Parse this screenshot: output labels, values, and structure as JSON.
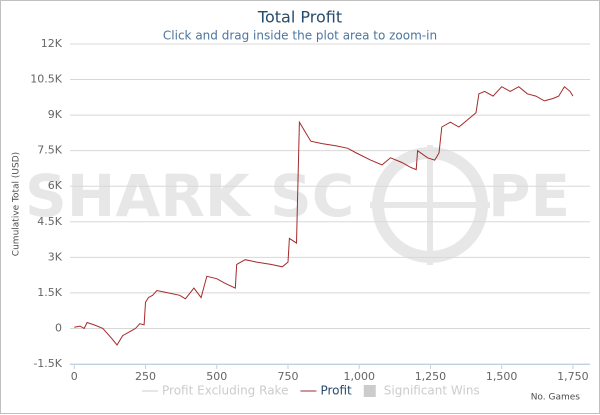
{
  "chart_data": {
    "type": "line",
    "title": "Total Profit",
    "subtitle": "Click and drag inside the plot area to zoom-in",
    "y_axis_label": "Cumulative Total (USD)",
    "x_axis_label": "No. Games",
    "watermark": [
      "SHARK SC",
      "PE"
    ],
    "xlim": [
      -15,
      1810
    ],
    "ylim": [
      -1500,
      12000
    ],
    "xticks": [
      0,
      250,
      500,
      750,
      {
        "value": 1000,
        "label": "1,000"
      },
      {
        "value": 1250,
        "label": "1,250"
      },
      {
        "value": 1500,
        "label": "1,500"
      },
      {
        "value": 1750,
        "label": "1,750"
      }
    ],
    "yticks": [
      {
        "value": -1500,
        "label": "-1.5K"
      },
      0,
      {
        "value": 1500,
        "label": "1.5K"
      },
      {
        "value": 3000,
        "label": "3K"
      },
      {
        "value": 4500,
        "label": "4.5K"
      },
      {
        "value": 6000,
        "label": "6K"
      },
      {
        "value": 7500,
        "label": "7.5K"
      },
      {
        "value": 9000,
        "label": "9K"
      },
      {
        "value": 10500,
        "label": "10.5K"
      },
      {
        "value": 12000,
        "label": "12K"
      }
    ],
    "grid": true,
    "x": [
      0,
      20,
      35,
      45,
      70,
      100,
      130,
      150,
      170,
      200,
      215,
      230,
      245,
      250,
      260,
      275,
      290,
      330,
      370,
      390,
      420,
      445,
      465,
      500,
      530,
      565,
      570,
      600,
      640,
      690,
      730,
      750,
      755,
      780,
      790,
      810,
      830,
      870,
      920,
      960,
      990,
      1040,
      1080,
      1110,
      1150,
      1180,
      1200,
      1205,
      1240,
      1265,
      1280,
      1290,
      1320,
      1350,
      1380,
      1410,
      1420,
      1440,
      1470,
      1500,
      1530,
      1560,
      1590,
      1620,
      1650,
      1680,
      1700,
      1720,
      1740,
      1750
    ],
    "series": [
      {
        "color": "#a52a2a",
        "values": [
          50,
          100,
          0,
          250,
          150,
          0,
          -400,
          -700,
          -300,
          -100,
          0,
          200,
          150,
          1100,
          1300,
          1400,
          1600,
          1500,
          1400,
          1250,
          1700,
          1300,
          2200,
          2100,
          1900,
          1700,
          2700,
          2900,
          2800,
          2700,
          2600,
          2800,
          3800,
          3600,
          8700,
          8300,
          7900,
          7800,
          7700,
          7600,
          7400,
          7100,
          6900,
          7200,
          7000,
          6800,
          6700,
          7500,
          7200,
          7100,
          7400,
          8500,
          8700,
          8500,
          8800,
          9100,
          9900,
          10000,
          9800,
          10200,
          10000,
          10200,
          9900,
          9800,
          9600,
          9700,
          9800,
          10200,
          10000,
          9800
        ]
      }
    ],
    "legend": [
      {
        "name": "Profit Excluding Rake",
        "color": "#cccccc",
        "symbol": "line",
        "active": false
      },
      {
        "name": "Profit",
        "color": "#a52a2a",
        "symbol": "line",
        "active": true
      },
      {
        "name": "Significant Wins",
        "color": "#cccccc",
        "symbol": "box",
        "active": false
      }
    ]
  }
}
